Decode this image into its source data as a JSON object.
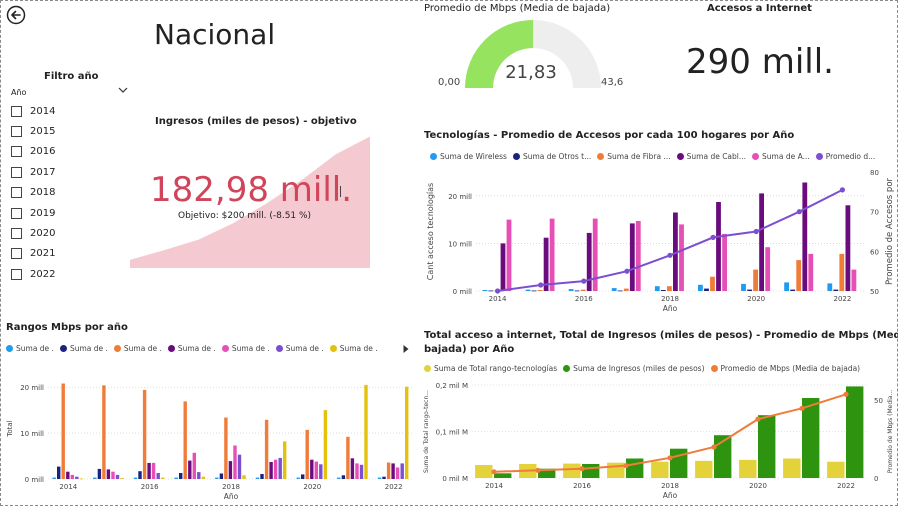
{
  "page": {
    "title": "Nacional"
  },
  "filter": {
    "title": "Filtro año",
    "field_label": "Año",
    "years": [
      "2014",
      "2015",
      "2016",
      "2017",
      "2018",
      "2019",
      "2020",
      "2021",
      "2022"
    ]
  },
  "kpi_ingresos": {
    "title": "Ingresos (miles de pesos) - objetivo",
    "value": "182,98 mill.",
    "goal": "Objetivo: $200 mill. (-8.51 %)",
    "fill_color": "#f4c9d0",
    "value_color": "#d0455a",
    "trend": [
      10,
      22,
      35,
      55,
      80,
      108,
      140,
      162
    ]
  },
  "gauge": {
    "title": "Promedio de Mbps (Media de bajada)",
    "min_label": "0,00",
    "max_label": "43,6",
    "value_label": "21,83",
    "min": 0,
    "max": 43.6,
    "value": 21.83,
    "fill_color": "#95e35f",
    "track_color": "#eeeeee"
  },
  "accesos": {
    "title": "Accesos a Internet",
    "value": "290 mill."
  },
  "charts": {
    "tecnologias": {
      "title": "Tecnologías - Promedio de Accesos por cada 100 hogares por Año",
      "legend": [
        {
          "label": "Suma de Wireless",
          "color": "#1f9bf0"
        },
        {
          "label": "Suma de Otros t...",
          "color": "#1a237e"
        },
        {
          "label": "Suma de Fibra ...",
          "color": "#f07c3a"
        },
        {
          "label": "Suma de Cabl...",
          "color": "#6a0c7e"
        },
        {
          "label": "Suma de A...",
          "color": "#e64fb5"
        },
        {
          "label": "Promedio d...",
          "color": "#7a4fd0"
        }
      ],
      "ylabel": "Cant acceso tecnologías",
      "y2label": "Promedio de Accesos por",
      "xlabel": "Año",
      "yticks": [
        "0 mill",
        "10 mill",
        "20 mill"
      ],
      "y2ticks": [
        "50",
        "60",
        "70",
        "80"
      ],
      "xticks": [
        "2014",
        "2016",
        "2018",
        "2020",
        "2022"
      ]
    },
    "rangos": {
      "title": "Rangos Mbps por año",
      "legend": [
        {
          "label": "Suma de .",
          "color": "#1f9bf0"
        },
        {
          "label": "Suma de .",
          "color": "#1a237e"
        },
        {
          "label": "Suma de .",
          "color": "#f07c3a"
        },
        {
          "label": "Suma de .",
          "color": "#6a0c7e"
        },
        {
          "label": "Suma de .",
          "color": "#e64fb5"
        },
        {
          "label": "Suma de .",
          "color": "#7a4fd0"
        },
        {
          "label": "Suma de .",
          "color": "#e3c20c"
        }
      ],
      "ylabel": "Total",
      "xlabel": "Año",
      "yticks": [
        "0 mill",
        "10 mill",
        "20 mill"
      ],
      "xticks": [
        "2014",
        "2016",
        "2018",
        "2020",
        "2022"
      ]
    },
    "total": {
      "title_line1": "Total acceso a internet, Total de Ingresos (miles de pesos) - Promedio de Mbps (Media de",
      "title_line2": "bajada) por Año",
      "legend": [
        {
          "label": "Suma de Total rango-tecnologías",
          "color": "#e3d23a"
        },
        {
          "label": "Suma de Ingresos (miles de pesos)",
          "color": "#2e9410"
        },
        {
          "label": "Promedio de Mbps (Media de bajada)",
          "color": "#f07c3a"
        }
      ],
      "ylabel": "Suma de Total rango-tecn...",
      "y2label": "Promedio de Mbps (Media...",
      "xlabel": "Año",
      "yticks": [
        "0 mil M",
        "0,1 mil M",
        "0,2 mil M"
      ],
      "y2ticks": [
        "0",
        "50"
      ],
      "xticks": [
        "2014",
        "2016",
        "2018",
        "2020",
        "2022"
      ]
    }
  },
  "chart_data": [
    {
      "type": "bar",
      "title": "Tecnologías - Promedio de Accesos por cada 100 hogares por Año",
      "xlabel": "Año",
      "ylabel": "Cant acceso tecnologías",
      "categories": [
        "2014",
        "2015",
        "2016",
        "2017",
        "2018",
        "2019",
        "2020",
        "2021",
        "2022"
      ],
      "ylim": [
        0,
        25
      ],
      "y2lim": [
        50,
        80
      ],
      "series": [
        {
          "name": "Suma de Wireless",
          "color": "#1f9bf0",
          "values": [
            0.2,
            0.3,
            0.4,
            0.6,
            1.0,
            1.3,
            1.5,
            1.8,
            1.6
          ]
        },
        {
          "name": "Suma de Otros t...",
          "color": "#1a237e",
          "values": [
            0.1,
            0.1,
            0.1,
            0.1,
            0.2,
            0.5,
            0.3,
            0.3,
            0.3
          ]
        },
        {
          "name": "Suma de Fibra ...",
          "color": "#f07c3a",
          "values": [
            0.1,
            0.2,
            0.3,
            0.5,
            1.0,
            3.0,
            4.5,
            6.5,
            7.8
          ]
        },
        {
          "name": "Suma de Cabl...",
          "color": "#6a0c7e",
          "values": [
            10.0,
            11.2,
            12.2,
            14.2,
            16.5,
            18.7,
            20.5,
            22.8,
            18.0
          ]
        },
        {
          "name": "Suma de A...",
          "color": "#e64fb5",
          "values": [
            15.0,
            15.2,
            15.2,
            14.7,
            14.0,
            12.0,
            9.2,
            7.8,
            4.5
          ]
        },
        {
          "name": "Promedio d...",
          "color": "#7a4fd0",
          "axis": "y2",
          "values": [
            50.0,
            51.5,
            52.5,
            55.0,
            59.0,
            63.5,
            65.0,
            70.0,
            75.5
          ]
        }
      ]
    },
    {
      "type": "bar",
      "title": "Rangos Mbps por año",
      "xlabel": "Año",
      "ylabel": "Total",
      "categories": [
        "2014",
        "2015",
        "2016",
        "2017",
        "2018",
        "2019",
        "2020",
        "2021",
        "2022"
      ],
      "ylim": [
        0,
        22
      ],
      "series": [
        {
          "name": "Suma de .",
          "color": "#1f9bf0",
          "values": [
            0.3,
            0.3,
            0.3,
            0.3,
            0.3,
            0.3,
            0.3,
            0.3,
            0.3
          ]
        },
        {
          "name": "Suma de .",
          "color": "#1a237e",
          "values": [
            2.7,
            2.2,
            1.7,
            1.3,
            1.2,
            1.1,
            1.0,
            0.8,
            0.5
          ]
        },
        {
          "name": "Suma de .",
          "color": "#f07c3a",
          "values": [
            20.8,
            20.4,
            19.4,
            16.9,
            13.4,
            12.9,
            10.7,
            9.2,
            3.6
          ]
        },
        {
          "name": "Suma de .",
          "color": "#6a0c7e",
          "values": [
            1.6,
            2.1,
            3.5,
            4.0,
            3.9,
            3.7,
            4.2,
            4.5,
            3.4
          ]
        },
        {
          "name": "Suma de .",
          "color": "#e64fb5",
          "values": [
            0.9,
            1.6,
            3.5,
            5.7,
            7.3,
            4.2,
            3.8,
            3.4,
            2.5
          ]
        },
        {
          "name": "Suma de .",
          "color": "#7a4fd0",
          "values": [
            0.5,
            0.9,
            1.3,
            1.5,
            5.3,
            4.6,
            3.2,
            3.1,
            3.4
          ]
        },
        {
          "name": "Suma de .",
          "color": "#e3c20c",
          "values": [
            0.1,
            0.2,
            0.3,
            0.5,
            0.8,
            8.2,
            15.0,
            20.5,
            20.1
          ]
        }
      ]
    },
    {
      "type": "bar",
      "title": "Total acceso a internet, Total de Ingresos (miles de pesos) - Promedio de Mbps (Media de bajada) por Año",
      "xlabel": "Año",
      "categories": [
        "2014",
        "2015",
        "2016",
        "2017",
        "2018",
        "2019",
        "2020",
        "2021",
        "2022"
      ],
      "ylim": [
        0,
        0.2
      ],
      "y2lim": [
        0,
        60
      ],
      "series": [
        {
          "name": "Suma de Total rango-tecnologías",
          "color": "#e3d23a",
          "values": [
            0.028,
            0.03,
            0.031,
            0.033,
            0.035,
            0.037,
            0.039,
            0.042,
            0.035
          ]
        },
        {
          "name": "Suma de Ingresos (miles de pesos)",
          "color": "#2e9410",
          "values": [
            0.01,
            0.02,
            0.03,
            0.042,
            0.063,
            0.092,
            0.135,
            0.172,
            0.197
          ]
        },
        {
          "name": "Promedio de Mbps (Media de bajada)",
          "color": "#f07c3a",
          "axis": "y2",
          "values": [
            4,
            5,
            6,
            8,
            13,
            20,
            38,
            45,
            54
          ]
        }
      ]
    }
  ]
}
